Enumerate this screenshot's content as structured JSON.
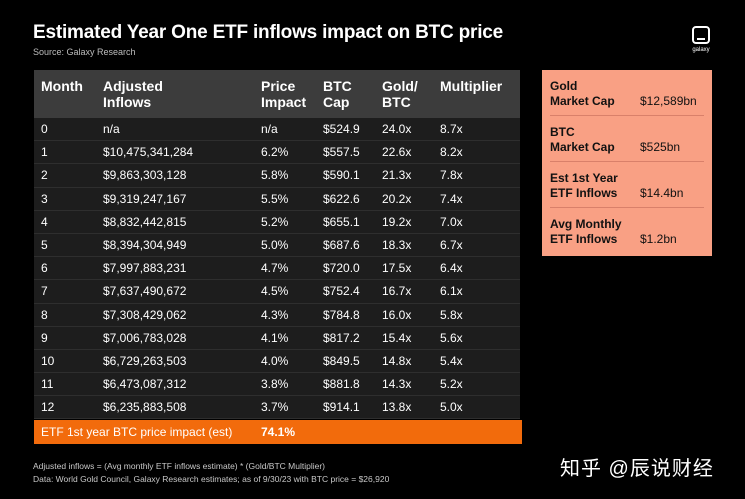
{
  "title": "Estimated Year One ETF inflows impact on BTC price",
  "source": "Source: Galaxy Research",
  "logo_text": "galaxy",
  "table": {
    "headers": [
      {
        "line1": "Month",
        "line2": ""
      },
      {
        "line1": "Adjusted",
        "line2": "Inflows"
      },
      {
        "line1": "Price",
        "line2": "Impact"
      },
      {
        "line1": "BTC",
        "line2": "Cap"
      },
      {
        "line1": "Gold/",
        "line2": "BTC"
      },
      {
        "line1": "Multiplier",
        "line2": ""
      }
    ],
    "rows": [
      [
        "0",
        "n/a",
        "n/a",
        "$524.9",
        "24.0x",
        "8.7x"
      ],
      [
        "1",
        "$10,475,341,284",
        "6.2%",
        "$557.5",
        "22.6x",
        "8.2x"
      ],
      [
        "2",
        "$9,863,303,128",
        "5.8%",
        "$590.1",
        "21.3x",
        "7.8x"
      ],
      [
        "3",
        "$9,319,247,167",
        "5.5%",
        "$622.6",
        "20.2x",
        "7.4x"
      ],
      [
        "4",
        "$8,832,442,815",
        "5.2%",
        "$655.1",
        "19.2x",
        "7.0x"
      ],
      [
        "5",
        "$8,394,304,949",
        "5.0%",
        "$687.6",
        "18.3x",
        "6.7x"
      ],
      [
        "6",
        "$7,997,883,231",
        "4.7%",
        "$720.0",
        "17.5x",
        "6.4x"
      ],
      [
        "7",
        "$7,637,490,672",
        "4.5%",
        "$752.4",
        "16.7x",
        "6.1x"
      ],
      [
        "8",
        "$7,308,429,062",
        "4.3%",
        "$784.8",
        "16.0x",
        "5.8x"
      ],
      [
        "9",
        "$7,006,783,028",
        "4.1%",
        "$817.2",
        "15.4x",
        "5.6x"
      ],
      [
        "10",
        "$6,729,263,503",
        "4.0%",
        "$849.5",
        "14.8x",
        "5.4x"
      ],
      [
        "11",
        "$6,473,087,312",
        "3.8%",
        "$881.8",
        "14.3x",
        "5.2x"
      ],
      [
        "12",
        "$6,235,883,508",
        "3.7%",
        "$914.1",
        "13.8x",
        "5.0x"
      ]
    ],
    "footer": {
      "label": "ETF 1st year BTC price impact (est)",
      "value": "74.1%"
    }
  },
  "side_panel": [
    {
      "line1": "Gold",
      "line2": "Market Cap",
      "value": "$12,589bn"
    },
    {
      "line1": "BTC",
      "line2": "Market Cap",
      "value": "$525bn"
    },
    {
      "line1": "Est 1st Year",
      "line2": "ETF Inflows",
      "value": "$14.4bn"
    },
    {
      "line1": "Avg Monthly",
      "line2": "ETF Inflows",
      "value": "$1.2bn"
    }
  ],
  "notes": [
    "Adjusted inflows = (Avg monthly ETF inflows estimate) * (Gold/BTC Multiplier)",
    "Data: World Gold Council, Galaxy Research estimates; as of 9/30/23 with BTC price = $26,920"
  ],
  "watermark": "知乎 @辰说财经",
  "colors": {
    "background": "#000000",
    "header": "#3c3c3c",
    "row": "#1d1d1d",
    "accent_orange": "#f26b0c",
    "side_panel": "#f9a084"
  }
}
